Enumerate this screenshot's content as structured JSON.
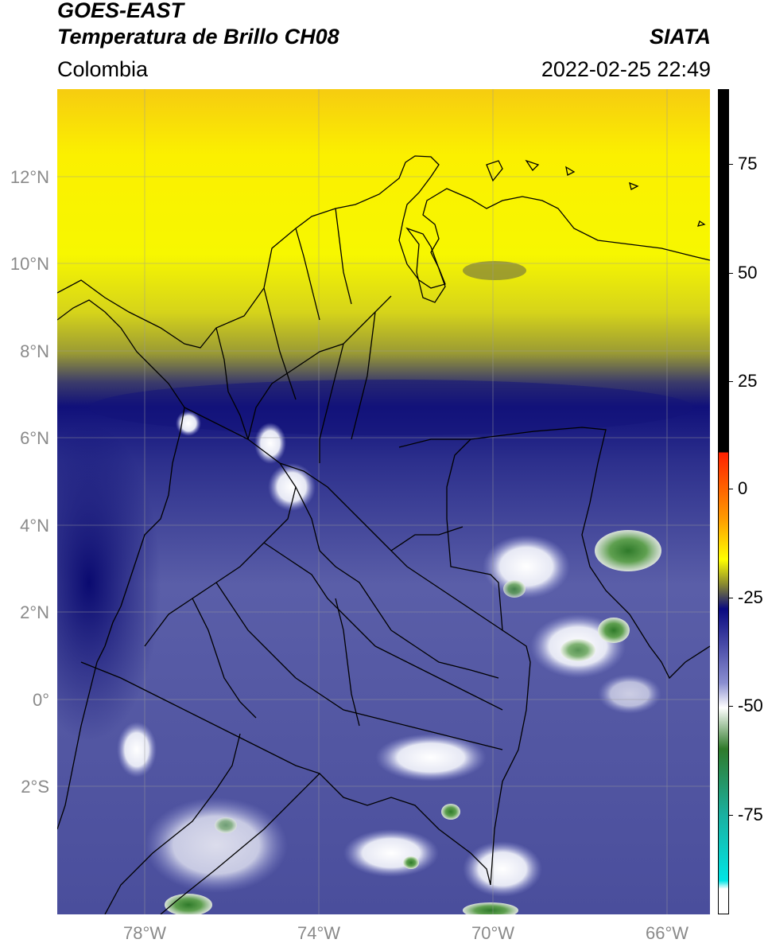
{
  "header": {
    "line1": "GOES-EAST",
    "line2": "Temperatura de Brillo CH08",
    "brand": "SIATA",
    "region": "Colombia",
    "datetime": "2022-02-25 22:49"
  },
  "axes": {
    "lat_labels": [
      "12°N",
      "10°N",
      "8°N",
      "6°N",
      "4°N",
      "2°N",
      "0°",
      "2°S"
    ],
    "lon_labels": [
      "78°W",
      "74°W",
      "70°W",
      "66°W"
    ]
  },
  "colorbar": {
    "tick_labels": [
      "75",
      "50",
      "25",
      "0",
      "-25",
      "-50",
      "-75"
    ],
    "colors": {
      "black": "#000000",
      "red": "#ff2000",
      "orange": "#ff9a00",
      "yellow": "#ffff00",
      "olive": "#8a8a30",
      "navy": "#0a0a80",
      "periwinkle": "#8a8ed0",
      "white": "#ffffff",
      "green": "#2f7a2a",
      "teal": "#1ab0a0",
      "cyan": "#00e5e5"
    }
  }
}
